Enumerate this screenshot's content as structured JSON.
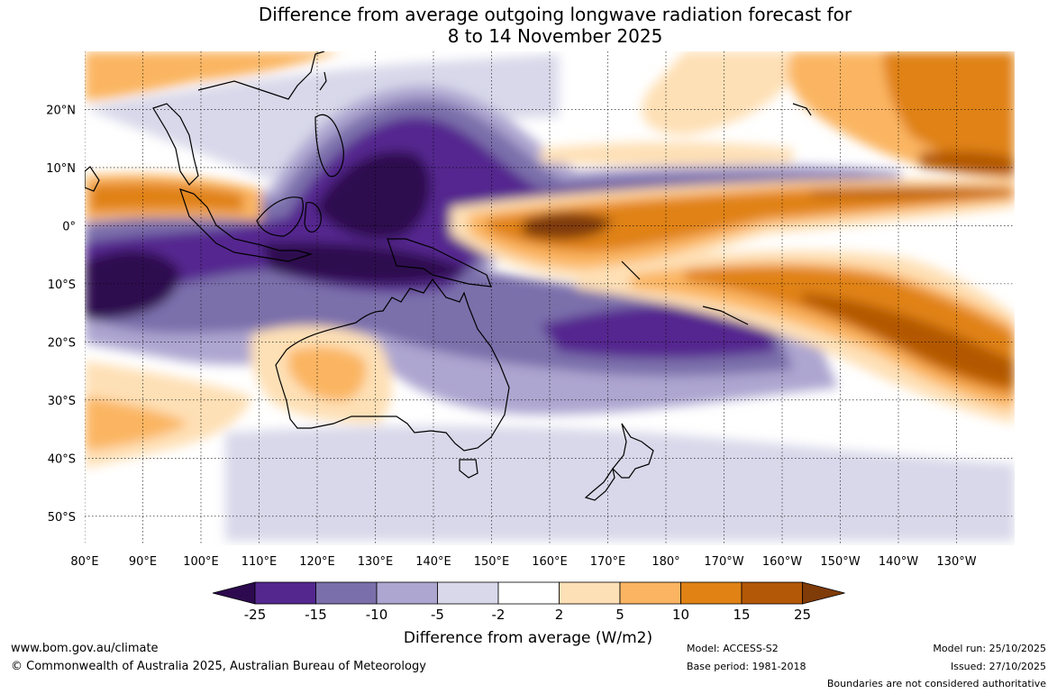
{
  "title": {
    "line1": "Difference from average outgoing longwave radiation forecast for",
    "line2": "8 to 14 November 2025"
  },
  "map": {
    "lat_labels": [
      {
        "lat": 20,
        "text": "20°N"
      },
      {
        "lat": 10,
        "text": "10°N"
      },
      {
        "lat": 0,
        "text": "0°"
      },
      {
        "lat": -10,
        "text": "10°S"
      },
      {
        "lat": -20,
        "text": "20°S"
      },
      {
        "lat": -30,
        "text": "30°S"
      },
      {
        "lat": -40,
        "text": "40°S"
      },
      {
        "lat": -50,
        "text": "50°S"
      }
    ],
    "lon_labels": [
      {
        "lon": 80,
        "text": "80°E"
      },
      {
        "lon": 90,
        "text": "90°E"
      },
      {
        "lon": 100,
        "text": "100°E"
      },
      {
        "lon": 110,
        "text": "110°E"
      },
      {
        "lon": 120,
        "text": "120°E"
      },
      {
        "lon": 130,
        "text": "130°E"
      },
      {
        "lon": 140,
        "text": "140°E"
      },
      {
        "lon": 150,
        "text": "150°E"
      },
      {
        "lon": 160,
        "text": "160°E"
      },
      {
        "lon": 170,
        "text": "170°E"
      },
      {
        "lon": 180,
        "text": "180°"
      },
      {
        "lon": 190,
        "text": "170°W"
      },
      {
        "lon": 200,
        "text": "160°W"
      },
      {
        "lon": 210,
        "text": "150°W"
      },
      {
        "lon": 220,
        "text": "140°W"
      },
      {
        "lon": 230,
        "text": "130°W"
      }
    ],
    "extent": {
      "lon_min": 80,
      "lon_max": 240,
      "lat_min": -55,
      "lat_max": 30
    }
  },
  "colorbar": {
    "bins": [
      {
        "color": "#2d0a4f",
        "role": "below -25"
      },
      {
        "color": "#54278f",
        "role": "-25 to -15"
      },
      {
        "color": "#7b6fab",
        "role": "-15 to -10"
      },
      {
        "color": "#ada6d0",
        "role": "-10 to -5"
      },
      {
        "color": "#d8d8ea",
        "role": "-5 to -2"
      },
      {
        "color": "#ffffff",
        "role": "-2 to 2"
      },
      {
        "color": "#fee0b6",
        "role": "2 to 5"
      },
      {
        "color": "#fbb562",
        "role": "5 to 10"
      },
      {
        "color": "#e08214",
        "role": "10 to 15"
      },
      {
        "color": "#b35806",
        "role": "15 to 25"
      },
      {
        "color": "#7f3b08",
        "role": "above 25"
      }
    ],
    "tick_labels": [
      "-25",
      "-15",
      "-10",
      "-5",
      "-2",
      "2",
      "5",
      "10",
      "15",
      "25"
    ],
    "title": "Difference from average (W/m2)"
  },
  "footer": {
    "website": "www.bom.gov.au/climate",
    "copyright": "© Commonwealth of Australia 2025, Australian Bureau of Meteorology",
    "model": "Model: ACCESS-S2",
    "base_period": "Base period: 1981-2018",
    "model_run": "Model run: 25/10/2025",
    "issued": "Issued: 27/10/2025",
    "disclaimer": "Boundaries are not considered authoritative"
  }
}
